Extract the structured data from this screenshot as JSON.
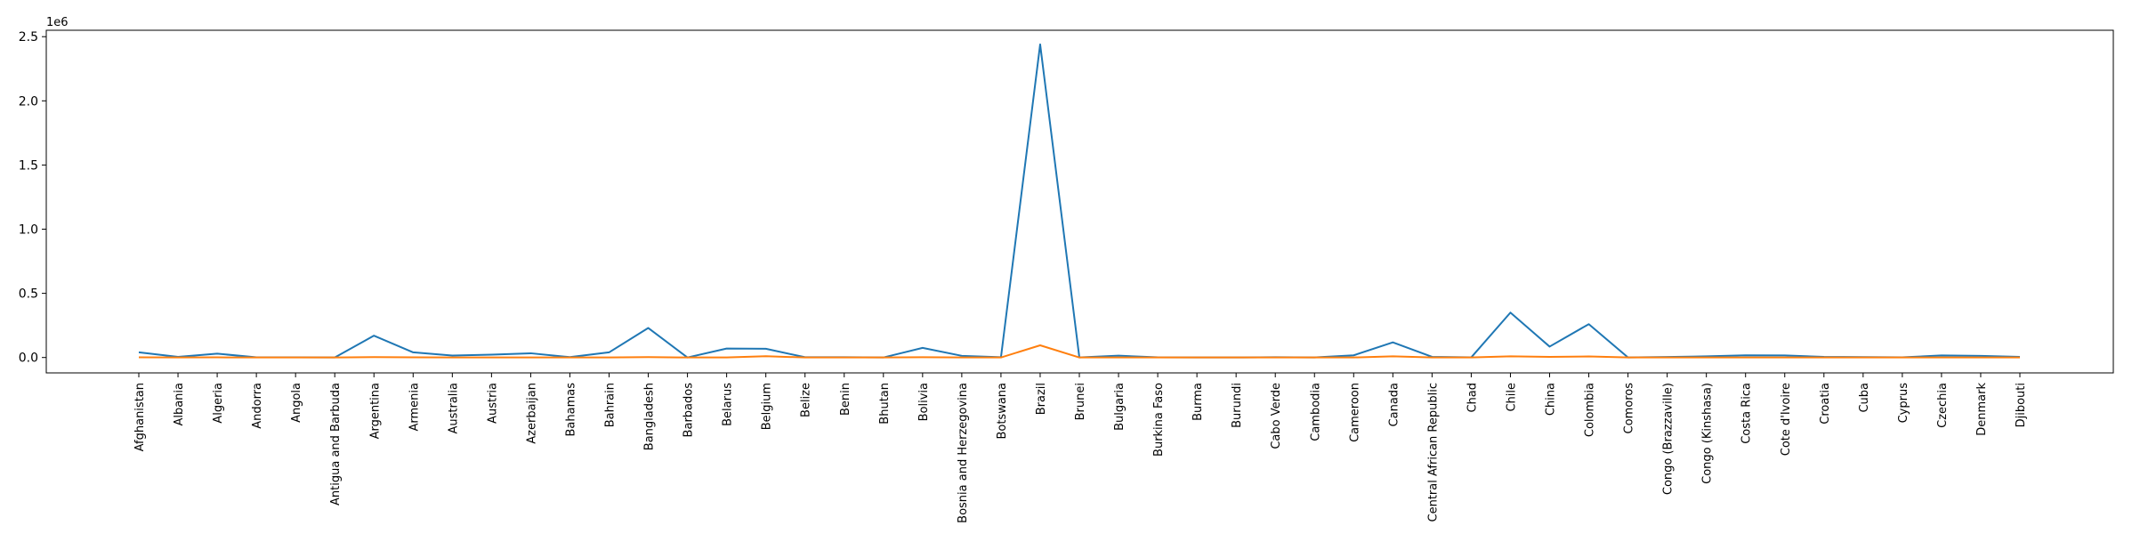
{
  "chart_data": {
    "type": "line",
    "title": "",
    "xlabel": "",
    "ylabel": "",
    "y_scale_label": "1e6",
    "ylim": [
      -0.12,
      2.55
    ],
    "yticks": [
      0.0,
      0.5,
      1.0,
      1.5,
      2.0,
      2.5
    ],
    "ytick_labels": [
      "0.0",
      "0.5",
      "1.0",
      "1.5",
      "2.0",
      "2.5"
    ],
    "grid": false,
    "categories": [
      "Afghanistan",
      "Albania",
      "Algeria",
      "Andorra",
      "Angola",
      "Antigua and Barbuda",
      "Argentina",
      "Armenia",
      "Australia",
      "Austria",
      "Azerbaijan",
      "Bahamas",
      "Bahrain",
      "Bangladesh",
      "Barbados",
      "Belarus",
      "Belgium",
      "Belize",
      "Benin",
      "Bhutan",
      "Bolivia",
      "Bosnia and Herzegovina",
      "Botswana",
      "Brazil",
      "Brunei",
      "Bulgaria",
      "Burkina Faso",
      "Burma",
      "Burundi",
      "Cabo Verde",
      "Cambodia",
      "Cameroon",
      "Canada",
      "Central African Republic",
      "Chad",
      "Chile",
      "China",
      "Colombia",
      "Comoros",
      "Congo (Brazzaville)",
      "Congo (Kinshasa)",
      "Costa Rica",
      "Cote d'Ivoire",
      "Croatia",
      "Cuba",
      "Cyprus",
      "Czechia",
      "Denmark",
      "Djibouti"
    ],
    "series": [
      {
        "color": "#1f77b4",
        "values": [
          0.04,
          0.005,
          0.03,
          0.001,
          0.001,
          0.0001,
          0.17,
          0.04,
          0.015,
          0.022,
          0.033,
          0.003,
          0.04,
          0.23,
          0.0001,
          0.07,
          0.068,
          0.002,
          0.002,
          0.0001,
          0.075,
          0.013,
          0.002,
          2.44,
          0.0001,
          0.014,
          0.001,
          0.0003,
          0.0003,
          0.002,
          0.0003,
          0.017,
          0.118,
          0.005,
          0.001,
          0.35,
          0.085,
          0.26,
          0.0003,
          0.004,
          0.009,
          0.017,
          0.016,
          0.005,
          0.003,
          0.001,
          0.016,
          0.013,
          0.005
        ]
      },
      {
        "color": "#ff7f0e",
        "values": [
          0.001,
          0.0001,
          0.001,
          0.0001,
          0.0001,
          0.0001,
          0.003,
          0.001,
          0.0002,
          0.0007,
          0.0004,
          0.0001,
          0.0002,
          0.003,
          0.0001,
          0.0006,
          0.01,
          0.0001,
          0.0001,
          0.0001,
          0.002,
          0.0004,
          0.0001,
          0.095,
          0.0001,
          0.0005,
          0.0001,
          0.0001,
          0.0001,
          0.0001,
          0.0001,
          0.0004,
          0.009,
          0.0001,
          0.0001,
          0.009,
          0.005,
          0.008,
          0.0001,
          0.0001,
          0.0002,
          0.0002,
          0.0001,
          0.0003,
          0.0001,
          0.0001,
          0.0004,
          0.0006,
          0.0001
        ]
      }
    ]
  }
}
